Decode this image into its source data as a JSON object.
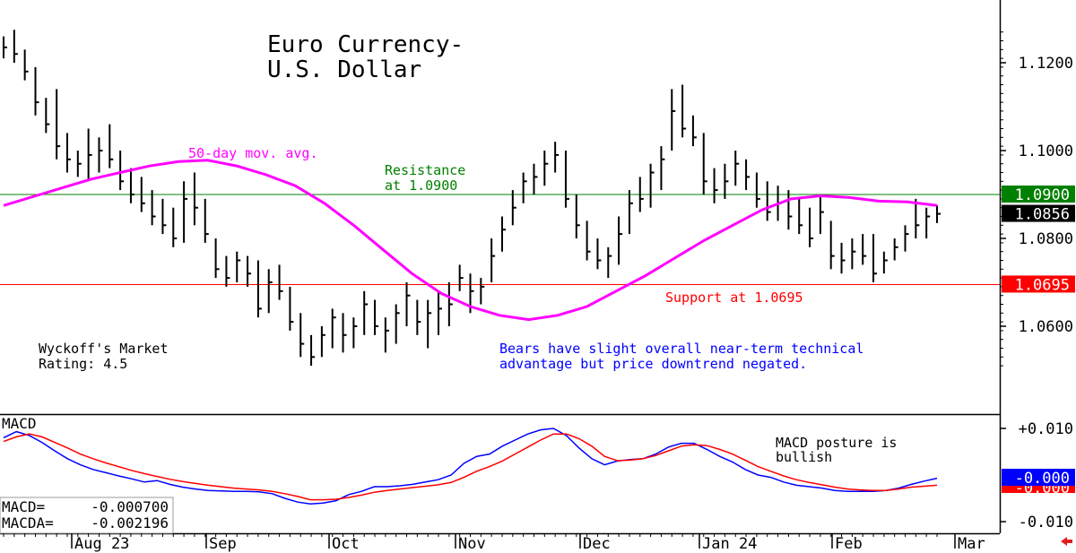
{
  "chart_data": [
    {
      "type": "ohlc",
      "title": "Euro Currency-",
      "subtitle": "U.S. Dollar",
      "y_ticks": [
        "1.1200",
        "1.1000",
        "1.0800",
        "1.0600"
      ],
      "ylim": [
        1.051,
        1.1275
      ],
      "x_ticks": [
        "Aug 23",
        "Sep",
        "Oct",
        "Nov",
        "Dec",
        "Jan 24",
        "Feb",
        "Mar"
      ],
      "colors": {
        "price": "#000000",
        "moving_average": "#ff00ff",
        "resistance": "#008000",
        "support": "#ff0000",
        "annotation": "#0000ff"
      },
      "resistance": {
        "value": 1.09,
        "label_line1": "Resistance",
        "label_line2": "at 1.0900",
        "box": "1.0900"
      },
      "support": {
        "value": 1.0695,
        "label": "Support at 1.0695",
        "box": "1.0695"
      },
      "last_price": {
        "value": 1.0856,
        "box": "1.0856"
      },
      "moving_average": {
        "name": "50-day mov. avg.",
        "values": [
          1.0875,
          1.0895,
          1.0915,
          1.0935,
          1.095,
          1.0965,
          1.0975,
          1.0978,
          1.0965,
          1.0945,
          1.092,
          1.088,
          1.083,
          1.0775,
          1.072,
          1.0675,
          1.0645,
          1.0625,
          1.0615,
          1.0625,
          1.0645,
          1.068,
          1.0715,
          1.0755,
          1.0795,
          1.083,
          1.0865,
          1.089,
          1.0897,
          1.0893,
          1.0885,
          1.0883,
          1.0875
        ]
      },
      "bars": [
        {
          "h": 1.126,
          "l": 1.121,
          "c": 1.1235
        },
        {
          "h": 1.1275,
          "l": 1.12,
          "c": 1.122
        },
        {
          "h": 1.123,
          "l": 1.116,
          "c": 1.118
        },
        {
          "h": 1.119,
          "l": 1.108,
          "c": 1.111
        },
        {
          "h": 1.112,
          "l": 1.104,
          "c": 1.106
        },
        {
          "h": 1.114,
          "l": 1.098,
          "c": 1.101
        },
        {
          "h": 1.104,
          "l": 1.095,
          "c": 1.098
        },
        {
          "h": 1.1,
          "l": 1.094,
          "c": 1.097
        },
        {
          "h": 1.105,
          "l": 1.093,
          "c": 1.099
        },
        {
          "h": 1.103,
          "l": 1.095,
          "c": 1.1
        },
        {
          "h": 1.106,
          "l": 1.096,
          "c": 1.098
        },
        {
          "h": 1.1,
          "l": 1.091,
          "c": 1.093
        },
        {
          "h": 1.096,
          "l": 1.088,
          "c": 1.09
        },
        {
          "h": 1.094,
          "l": 1.086,
          "c": 1.088
        },
        {
          "h": 1.091,
          "l": 1.083,
          "c": 1.085
        },
        {
          "h": 1.089,
          "l": 1.081,
          "c": 1.083
        },
        {
          "h": 1.087,
          "l": 1.078,
          "c": 1.08
        },
        {
          "h": 1.093,
          "l": 1.079,
          "c": 1.089
        },
        {
          "h": 1.095,
          "l": 1.083,
          "c": 1.087
        },
        {
          "h": 1.089,
          "l": 1.079,
          "c": 1.081
        },
        {
          "h": 1.08,
          "l": 1.071,
          "c": 1.073
        },
        {
          "h": 1.076,
          "l": 1.069,
          "c": 1.071
        },
        {
          "h": 1.077,
          "l": 1.07,
          "c": 1.075
        },
        {
          "h": 1.076,
          "l": 1.069,
          "c": 1.072
        },
        {
          "h": 1.075,
          "l": 1.062,
          "c": 1.064
        },
        {
          "h": 1.073,
          "l": 1.063,
          "c": 1.07
        },
        {
          "h": 1.074,
          "l": 1.066,
          "c": 1.068
        },
        {
          "h": 1.069,
          "l": 1.059,
          "c": 1.061
        },
        {
          "h": 1.063,
          "l": 1.053,
          "c": 1.056
        },
        {
          "h": 1.058,
          "l": 1.051,
          "c": 1.053
        },
        {
          "h": 1.06,
          "l": 1.053,
          "c": 1.058
        },
        {
          "h": 1.064,
          "l": 1.055,
          "c": 1.062
        },
        {
          "h": 1.063,
          "l": 1.054,
          "c": 1.058
        },
        {
          "h": 1.062,
          "l": 1.055,
          "c": 1.06
        },
        {
          "h": 1.068,
          "l": 1.058,
          "c": 1.065
        },
        {
          "h": 1.066,
          "l": 1.058,
          "c": 1.06
        },
        {
          "h": 1.062,
          "l": 1.054,
          "c": 1.059
        },
        {
          "h": 1.065,
          "l": 1.056,
          "c": 1.063
        },
        {
          "h": 1.07,
          "l": 1.06,
          "c": 1.067
        },
        {
          "h": 1.066,
          "l": 1.058,
          "c": 1.061
        },
        {
          "h": 1.066,
          "l": 1.055,
          "c": 1.063
        },
        {
          "h": 1.068,
          "l": 1.058,
          "c": 1.064
        },
        {
          "h": 1.07,
          "l": 1.06,
          "c": 1.065
        },
        {
          "h": 1.074,
          "l": 1.068,
          "c": 1.071
        },
        {
          "h": 1.072,
          "l": 1.063,
          "c": 1.068
        },
        {
          "h": 1.071,
          "l": 1.065,
          "c": 1.069
        },
        {
          "h": 1.08,
          "l": 1.07,
          "c": 1.076
        },
        {
          "h": 1.085,
          "l": 1.077,
          "c": 1.082
        },
        {
          "h": 1.091,
          "l": 1.083,
          "c": 1.087
        },
        {
          "h": 1.095,
          "l": 1.088,
          "c": 1.093
        },
        {
          "h": 1.097,
          "l": 1.09,
          "c": 1.094
        },
        {
          "h": 1.1,
          "l": 1.092,
          "c": 1.097
        },
        {
          "h": 1.102,
          "l": 1.095,
          "c": 1.099
        },
        {
          "h": 1.1,
          "l": 1.087,
          "c": 1.089
        },
        {
          "h": 1.09,
          "l": 1.08,
          "c": 1.083
        },
        {
          "h": 1.084,
          "l": 1.075,
          "c": 1.077
        },
        {
          "h": 1.08,
          "l": 1.073,
          "c": 1.075
        },
        {
          "h": 1.078,
          "l": 1.071,
          "c": 1.076
        },
        {
          "h": 1.085,
          "l": 1.074,
          "c": 1.081
        },
        {
          "h": 1.091,
          "l": 1.081,
          "c": 1.088
        },
        {
          "h": 1.094,
          "l": 1.086,
          "c": 1.089
        },
        {
          "h": 1.097,
          "l": 1.087,
          "c": 1.095
        },
        {
          "h": 1.101,
          "l": 1.091,
          "c": 1.098
        },
        {
          "h": 1.114,
          "l": 1.1,
          "c": 1.109
        },
        {
          "h": 1.115,
          "l": 1.103,
          "c": 1.105
        },
        {
          "h": 1.108,
          "l": 1.101,
          "c": 1.103
        },
        {
          "h": 1.104,
          "l": 1.09,
          "c": 1.093
        },
        {
          "h": 1.096,
          "l": 1.088,
          "c": 1.091
        },
        {
          "h": 1.097,
          "l": 1.089,
          "c": 1.093
        },
        {
          "h": 1.1,
          "l": 1.092,
          "c": 1.097
        },
        {
          "h": 1.098,
          "l": 1.091,
          "c": 1.094
        },
        {
          "h": 1.095,
          "l": 1.087,
          "c": 1.089
        },
        {
          "h": 1.093,
          "l": 1.084,
          "c": 1.086
        },
        {
          "h": 1.092,
          "l": 1.084,
          "c": 1.088
        },
        {
          "h": 1.091,
          "l": 1.082,
          "c": 1.085
        },
        {
          "h": 1.089,
          "l": 1.081,
          "c": 1.083
        },
        {
          "h": 1.087,
          "l": 1.078,
          "c": 1.08
        },
        {
          "h": 1.09,
          "l": 1.081,
          "c": 1.086
        },
        {
          "h": 1.084,
          "l": 1.073,
          "c": 1.076
        },
        {
          "h": 1.079,
          "l": 1.072,
          "c": 1.075
        },
        {
          "h": 1.08,
          "l": 1.073,
          "c": 1.077
        },
        {
          "h": 1.081,
          "l": 1.074,
          "c": 1.076
        },
        {
          "h": 1.081,
          "l": 1.07,
          "c": 1.072
        },
        {
          "h": 1.077,
          "l": 1.072,
          "c": 1.075
        },
        {
          "h": 1.08,
          "l": 1.075,
          "c": 1.078
        },
        {
          "h": 1.083,
          "l": 1.077,
          "c": 1.081
        },
        {
          "h": 1.089,
          "l": 1.08,
          "c": 1.083
        },
        {
          "h": 1.087,
          "l": 1.08,
          "c": 1.085
        },
        {
          "h": 1.0875,
          "l": 1.0835,
          "c": 1.0856
        }
      ]
    },
    {
      "type": "line",
      "title": "MACD",
      "y_ticks": [
        "+0.010",
        "-0.010"
      ],
      "ylim": [
        -0.0115,
        0.0125
      ],
      "annotation_line1": "MACD posture is",
      "annotation_line2": "bullish",
      "readout": {
        "macd_label": "MACD=",
        "macd_value": "-0.000700",
        "macda_label": "MACDA=",
        "macda_value": "-0.002196"
      },
      "last_box": "-0.000",
      "series": [
        {
          "color": "#0000ff",
          "values": [
            0.008,
            0.0093,
            0.0085,
            0.007,
            0.0052,
            0.0035,
            0.0022,
            0.0012,
            0.0005,
            -0.0002,
            -0.0008,
            -0.0015,
            -0.0012,
            -0.002,
            -0.0026,
            -0.003,
            -0.0033,
            -0.0034,
            -0.0035,
            -0.0035,
            -0.0036,
            -0.004,
            -0.005,
            -0.0058,
            -0.0062,
            -0.006,
            -0.0055,
            -0.0042,
            -0.0035,
            -0.0025,
            -0.0025,
            -0.0023,
            -0.002,
            -0.0015,
            -0.001,
            0.0,
            0.0025,
            0.004,
            0.0045,
            0.0062,
            0.0075,
            0.0088,
            0.0097,
            0.01,
            0.0085,
            0.0058,
            0.0035,
            0.0022,
            0.003,
            0.0033,
            0.0035,
            0.0045,
            0.006,
            0.0068,
            0.0068,
            0.0055,
            0.004,
            0.0028,
            0.0012,
            0.0,
            -0.0005,
            -0.0015,
            -0.0022,
            -0.0025,
            -0.0028,
            -0.0033,
            -0.0035,
            -0.0035,
            -0.0035,
            -0.0033,
            -0.0028,
            -0.002,
            -0.0013,
            -0.0007
          ]
        },
        {
          "color": "#ff0000",
          "values": [
            0.0072,
            0.0082,
            0.0088,
            0.0082,
            0.007,
            0.0058,
            0.0045,
            0.0035,
            0.0026,
            0.0018,
            0.001,
            0.0003,
            -0.0003,
            -0.0009,
            -0.0014,
            -0.0018,
            -0.0022,
            -0.0025,
            -0.0028,
            -0.003,
            -0.0032,
            -0.0035,
            -0.004,
            -0.0046,
            -0.0053,
            -0.0053,
            -0.0052,
            -0.0048,
            -0.0043,
            -0.0037,
            -0.0033,
            -0.003,
            -0.0027,
            -0.0024,
            -0.0021,
            -0.0016,
            -0.0005,
            0.0008,
            0.0018,
            0.003,
            0.0045,
            0.006,
            0.0075,
            0.0088,
            0.0088,
            0.0078,
            0.0062,
            0.004,
            0.0031,
            0.0032,
            0.0035,
            0.0042,
            0.0052,
            0.0062,
            0.0065,
            0.0063,
            0.0055,
            0.0045,
            0.0032,
            0.0018,
            0.0008,
            -0.0002,
            -0.001,
            -0.0016,
            -0.0021,
            -0.0026,
            -0.003,
            -0.0032,
            -0.0033,
            -0.0033,
            -0.003,
            -0.0026,
            -0.0024,
            -0.0022
          ]
        }
      ]
    }
  ],
  "labels": {
    "wyckoff_line1": "Wyckoff's Market",
    "wyckoff_line2": "Rating: 4.5",
    "comment_line1": "Bears have slight overall near-term technical",
    "comment_line2": "advantage but price downtrend negated."
  },
  "icons": {
    "nav_arrow": "left-arrow-icon"
  }
}
